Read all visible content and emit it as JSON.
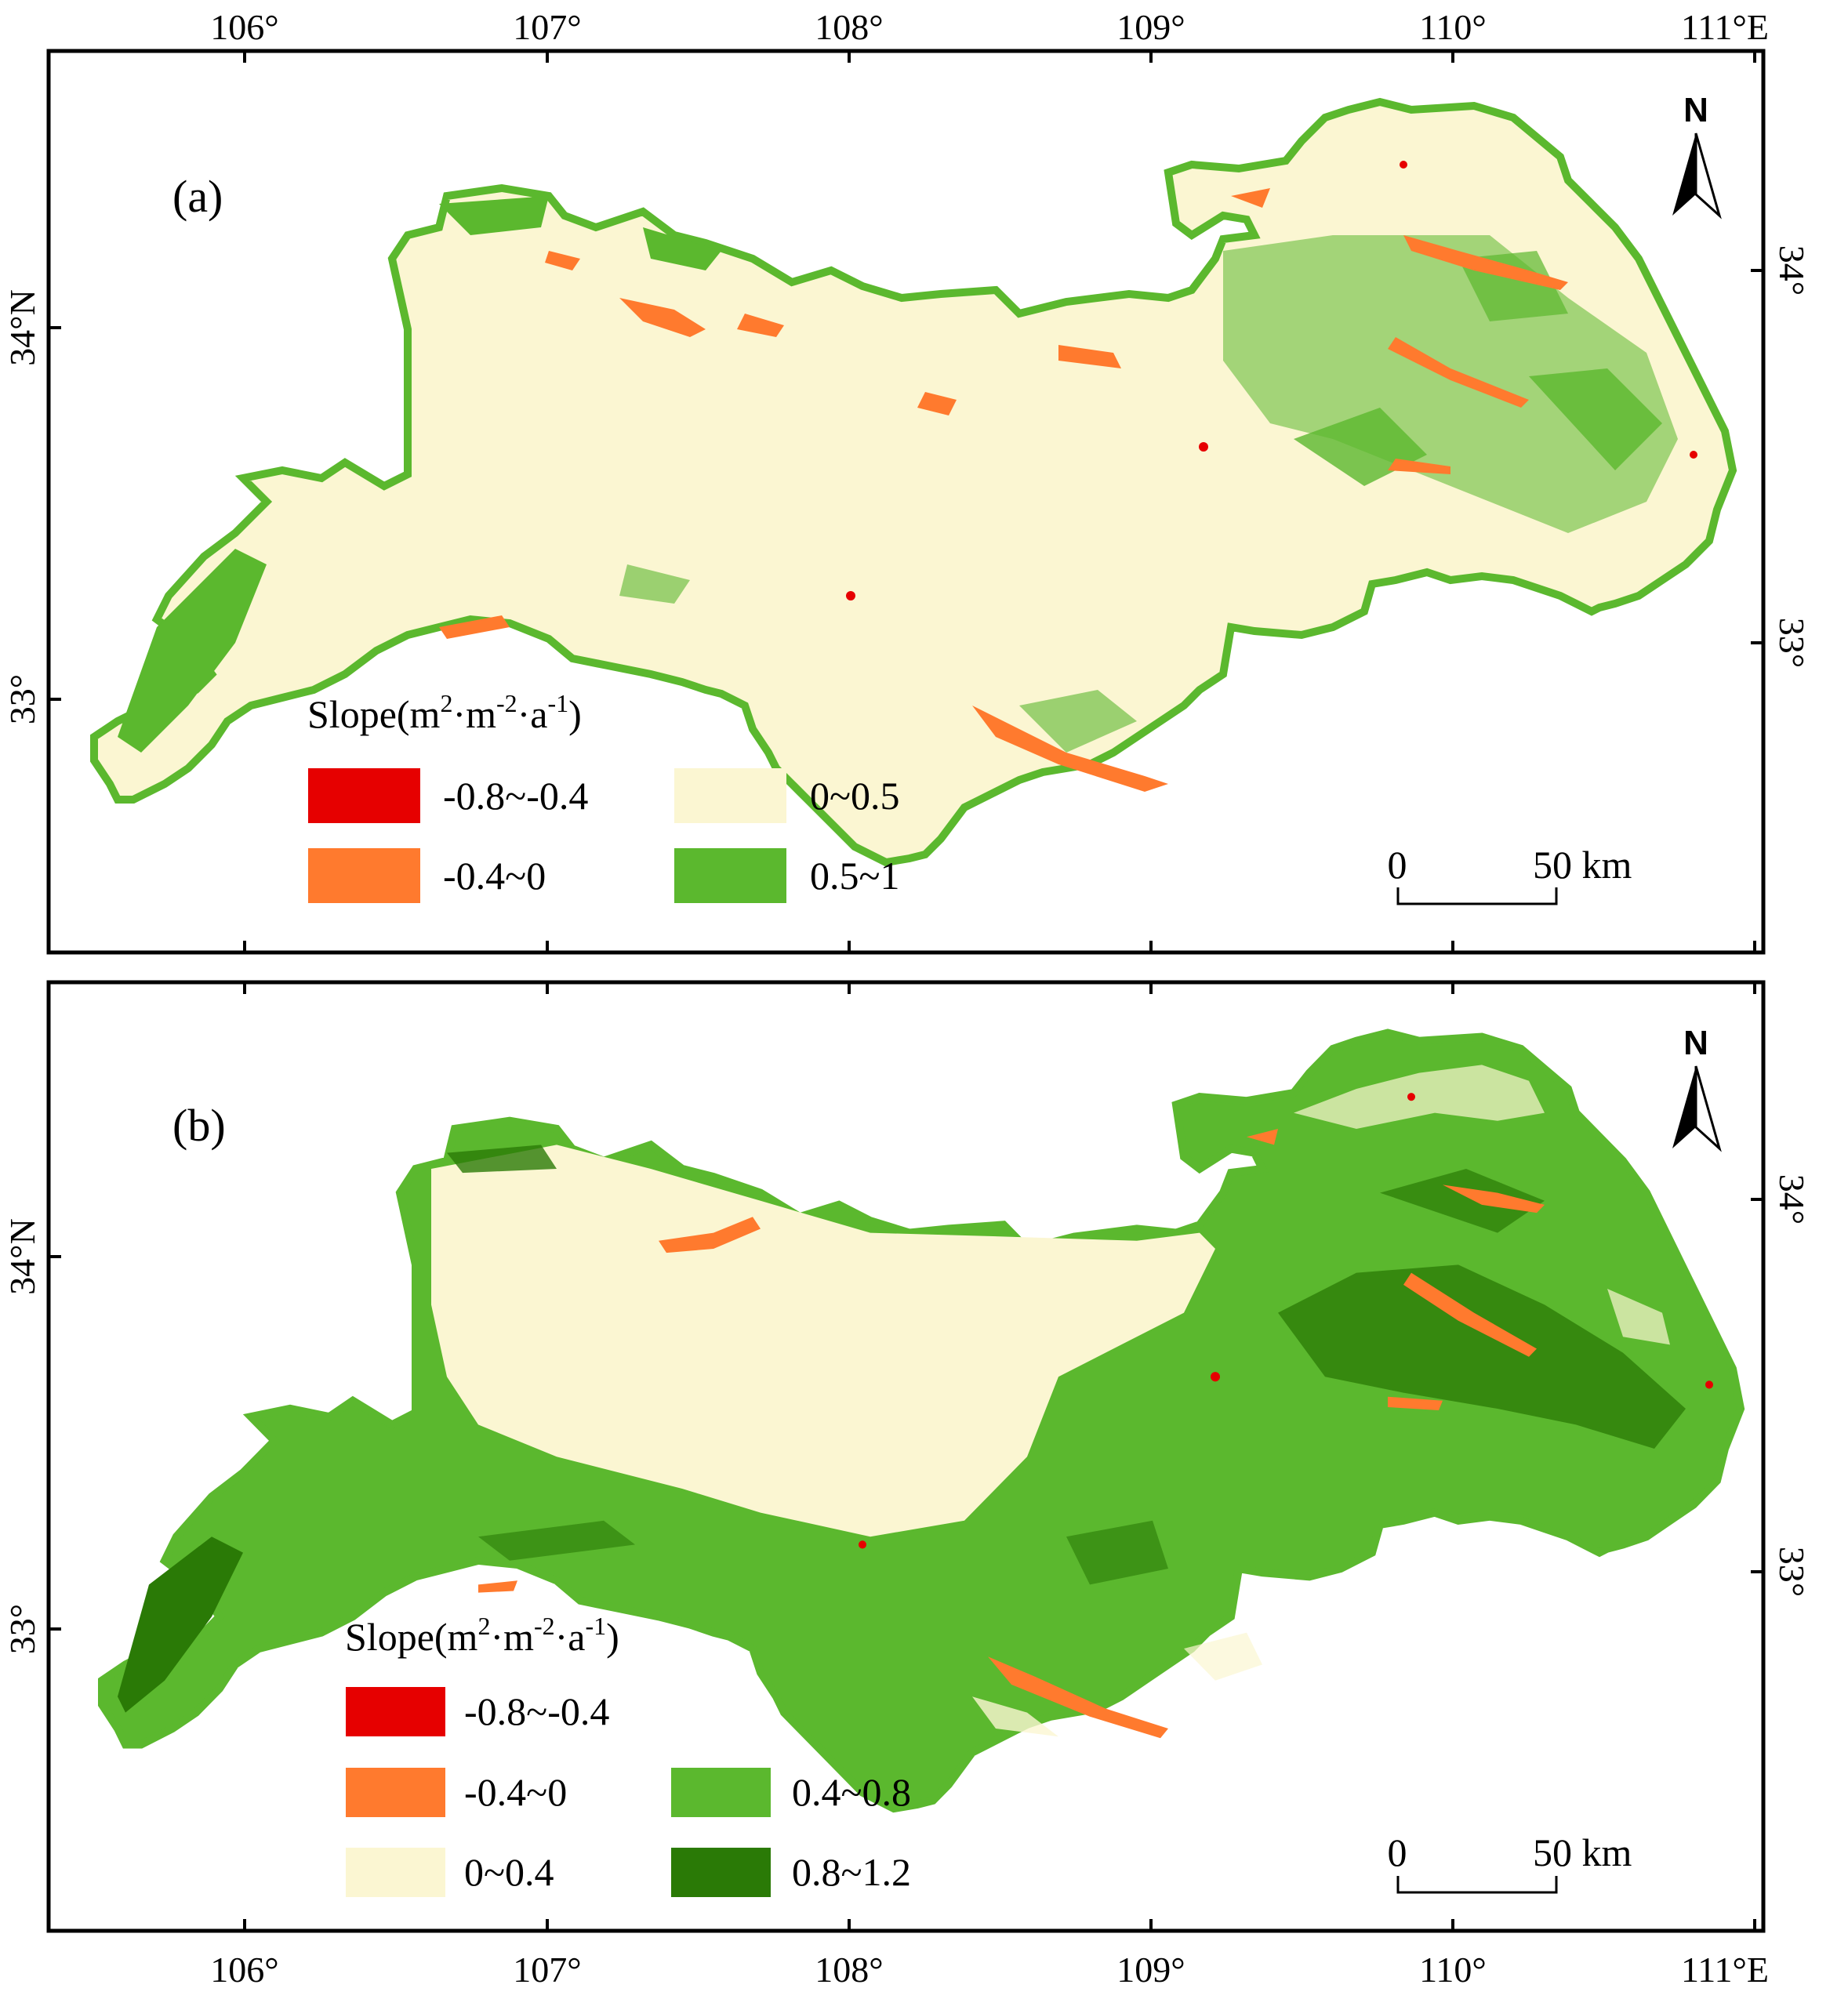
{
  "colors": {
    "dark_red": "#e60000",
    "orange": "#ff7a2e",
    "cream": "#fbf6d2",
    "green": "#5bb82e",
    "dark_green": "#2a7a06",
    "frame": "#000000"
  },
  "top_axis_labels": [
    "106°",
    "107°",
    "108°",
    "109°",
    "110°",
    "111°E"
  ],
  "bottom_axis_labels": [
    "106°",
    "107°",
    "108°",
    "109°",
    "110°",
    "111°E"
  ],
  "panel_a": {
    "label": "(a)",
    "left_lat_labels": [
      "34°N",
      "33°"
    ],
    "right_lat_labels": [
      "34°",
      "33°"
    ],
    "north": "N",
    "scale_zero": "0",
    "scale_end": "50 km",
    "legend": {
      "title_main": "Slope(m",
      "sup1": "2",
      "mid1": "·m",
      "sup2": "-2",
      "mid2": "·a",
      "sup3": "-1",
      "close": ")",
      "items": [
        {
          "label": "-0.8~-0.4",
          "color": "#e60000"
        },
        {
          "label": "0~0.5",
          "color": "#fbf6d2"
        },
        {
          "label": "-0.4~0",
          "color": "#ff7a2e"
        },
        {
          "label": "0.5~1",
          "color": "#5bb82e"
        }
      ]
    }
  },
  "panel_b": {
    "label": "(b)",
    "left_lat_labels": [
      "34°N",
      "33°"
    ],
    "right_lat_labels": [
      "34°",
      "33°"
    ],
    "north": "N",
    "scale_zero": "0",
    "scale_end": "50 km",
    "legend": {
      "title_main": "Slope(m",
      "sup1": "2",
      "mid1": "·m",
      "sup2": "-2",
      "mid2": "·a",
      "sup3": "-1",
      "close": ")",
      "items": [
        {
          "label": "-0.8~-0.4",
          "color": "#e60000"
        },
        {
          "label": "-0.4~0",
          "color": "#ff7a2e"
        },
        {
          "label": "0.4~0.8",
          "color": "#5bb82e"
        },
        {
          "label": "0~0.4",
          "color": "#fbf6d2"
        },
        {
          "label": "0.8~1.2",
          "color": "#2a7a06"
        }
      ]
    }
  }
}
